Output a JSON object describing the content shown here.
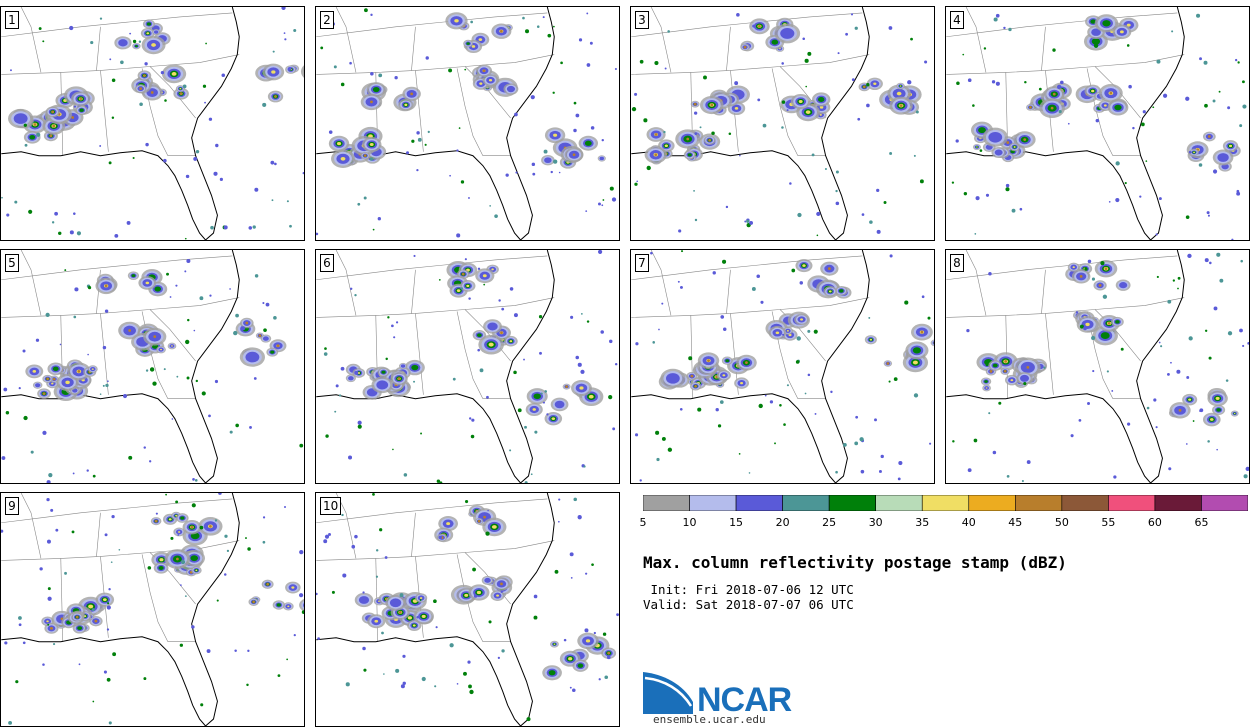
{
  "members": [
    "1",
    "2",
    "3",
    "4",
    "5",
    "6",
    "7",
    "8",
    "9",
    "10"
  ],
  "colorbar": {
    "ticks": [
      "5",
      "10",
      "15",
      "20",
      "25",
      "30",
      "35",
      "40",
      "45",
      "50",
      "55",
      "60",
      "65"
    ],
    "colors": [
      "#a0a0a0",
      "#b4bcec",
      "#5a5ad8",
      "#4c9696",
      "#00800a",
      "#b8dcb8",
      "#f0de64",
      "#ecac20",
      "#b87e2c",
      "#8c5838",
      "#f0507c",
      "#6a1a38",
      "#b24cb0"
    ]
  },
  "title": "Max. column reflectivity postage stamp (dBZ)",
  "init_line": " Init: Fri 2018-07-06 12 UTC",
  "valid_line": "Valid: Sat 2018-07-07 06 UTC",
  "logo": {
    "text": "NCAR",
    "url": "ensemble.ucar.edu",
    "brand_color": "#1a6fba"
  }
}
